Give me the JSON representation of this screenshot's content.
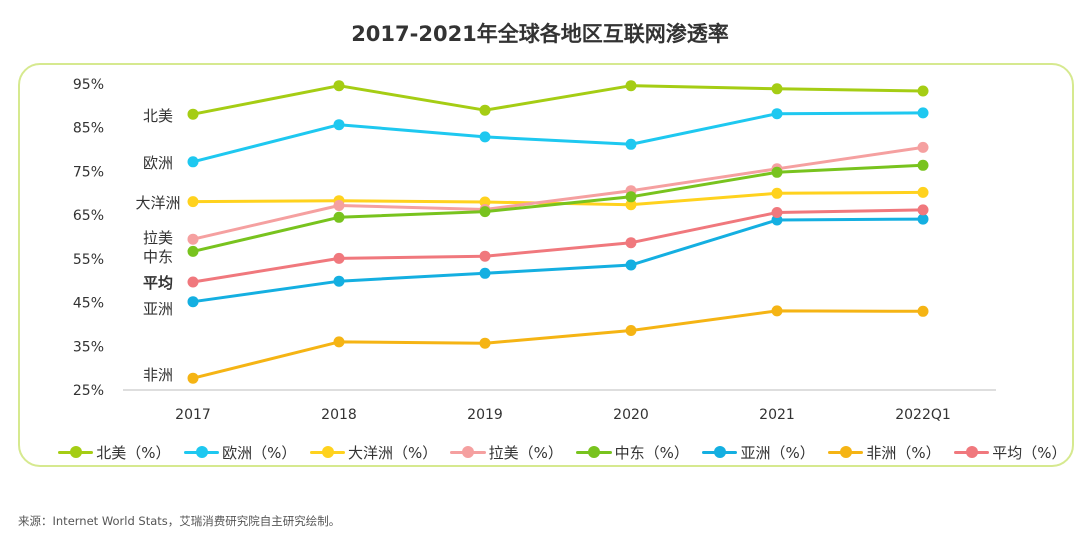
{
  "title": "2017-2021年全球各地区互联网渗透率",
  "source": "来源：Internet World Stats，艾瑞消费研究院自主研究绘制。",
  "chart_data": {
    "type": "line",
    "title": "2017-2021年全球各地区互联网渗透率",
    "categories": [
      "2017",
      "2018",
      "2019",
      "2020",
      "2021",
      "2022Q1"
    ],
    "y_ticks": [
      "95%",
      "85%",
      "75%",
      "65%",
      "55%",
      "45%",
      "35%",
      "25%"
    ],
    "ylim": [
      25,
      95
    ],
    "grid": false,
    "legend_position": "bottom",
    "series": [
      {
        "name": "北美（%）",
        "side_label": "北美",
        "color": "#a5cd14",
        "values": [
          88.1,
          94.6,
          89.0,
          94.6,
          93.9,
          93.4
        ]
      },
      {
        "name": "欧洲（%）",
        "side_label": "欧洲",
        "color": "#1ec8f0",
        "values": [
          77.2,
          85.7,
          82.9,
          81.2,
          88.2,
          88.4
        ]
      },
      {
        "name": "大洋洲（%）",
        "side_label": "大洋洲",
        "color": "#ffd21e",
        "values": [
          68.1,
          68.3,
          68.0,
          67.4,
          70.0,
          70.2
        ]
      },
      {
        "name": "拉美（%）",
        "side_label": "拉美",
        "color": "#f5a0a0",
        "values": [
          59.5,
          67.2,
          66.3,
          70.6,
          75.6,
          80.5
        ]
      },
      {
        "name": "中东（%）",
        "side_label": "中东",
        "color": "#78c31e",
        "values": [
          56.7,
          64.5,
          65.8,
          69.2,
          74.8,
          76.4
        ]
      },
      {
        "name": "亚洲（%）",
        "side_label": "亚洲",
        "color": "#14afe1",
        "values": [
          45.2,
          49.9,
          51.7,
          53.6,
          63.9,
          64.1
        ]
      },
      {
        "name": "非洲（%）",
        "side_label": "非洲",
        "color": "#f5b414",
        "values": [
          27.7,
          36.0,
          35.7,
          38.6,
          43.1,
          43.0
        ]
      },
      {
        "name": "平均（%）",
        "side_label": "平均",
        "color": "#f0787d",
        "values": [
          49.7,
          55.1,
          55.6,
          58.7,
          65.6,
          66.2
        ]
      }
    ]
  }
}
